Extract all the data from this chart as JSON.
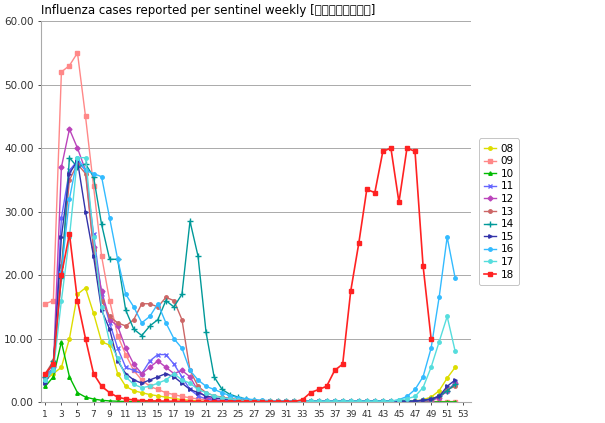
{
  "title": "Influenza cases reported per sentinel weekly [定点当たり報告数]",
  "weeks": [
    1,
    2,
    3,
    4,
    5,
    6,
    7,
    8,
    9,
    10,
    11,
    12,
    13,
    14,
    15,
    16,
    17,
    18,
    19,
    20,
    21,
    22,
    23,
    24,
    25,
    26,
    27,
    28,
    29,
    30,
    31,
    32,
    33,
    34,
    35,
    36,
    37,
    38,
    39,
    40,
    41,
    42,
    43,
    44,
    45,
    46,
    47,
    48,
    49,
    50,
    51,
    52,
    53
  ],
  "series": {
    "08": {
      "color": "#DDDD00",
      "marker": "o",
      "markersize": 2.5,
      "linewidth": 1.0,
      "values": [
        3.5,
        4.5,
        5.5,
        10.0,
        17.0,
        18.0,
        14.0,
        9.5,
        9.0,
        4.5,
        2.5,
        1.8,
        1.5,
        1.2,
        1.0,
        0.8,
        0.6,
        0.4,
        0.3,
        0.2,
        0.1,
        0.1,
        0.1,
        0.1,
        0.1,
        0.1,
        0.1,
        0.1,
        0.1,
        0.1,
        0.1,
        0.1,
        0.1,
        0.1,
        0.1,
        0.1,
        0.1,
        0.1,
        0.1,
        0.1,
        0.1,
        0.1,
        0.1,
        0.1,
        0.1,
        0.1,
        0.15,
        0.4,
        0.8,
        1.8,
        3.8,
        5.5,
        null
      ]
    },
    "09": {
      "color": "#FF8888",
      "marker": "s",
      "markersize": 2.5,
      "linewidth": 1.0,
      "values": [
        15.5,
        16.0,
        52.0,
        53.0,
        55.0,
        45.0,
        34.0,
        23.0,
        16.0,
        10.5,
        7.5,
        5.0,
        3.5,
        2.5,
        2.0,
        1.5,
        1.2,
        0.9,
        0.7,
        0.5,
        0.4,
        0.3,
        0.2,
        0.2,
        0.1,
        0.1,
        0.1,
        0.1,
        0.1,
        0.1,
        0.1,
        0.1,
        0.1,
        0.1,
        0.1,
        0.1,
        0.1,
        0.1,
        0.1,
        0.1,
        0.1,
        0.1,
        0.1,
        0.1,
        0.1,
        0.1,
        0.1,
        0.1,
        0.1,
        0.1,
        0.1,
        0.1,
        null
      ]
    },
    "10": {
      "color": "#00BB00",
      "marker": "^",
      "markersize": 2.5,
      "linewidth": 1.0,
      "values": [
        2.5,
        4.0,
        9.5,
        4.0,
        1.5,
        0.8,
        0.5,
        0.3,
        0.2,
        0.15,
        0.1,
        0.1,
        0.1,
        0.05,
        0.05,
        0.05,
        0.05,
        0.05,
        0.05,
        0.05,
        0.05,
        0.05,
        0.05,
        0.05,
        0.05,
        0.05,
        0.05,
        0.05,
        0.05,
        0.05,
        0.05,
        0.05,
        0.05,
        0.05,
        0.05,
        0.05,
        0.05,
        0.05,
        0.05,
        0.05,
        0.05,
        0.05,
        0.05,
        0.05,
        0.05,
        0.05,
        0.05,
        0.05,
        0.05,
        0.05,
        0.05,
        0.05,
        null
      ]
    },
    "11": {
      "color": "#6666FF",
      "marker": "x",
      "markersize": 3.5,
      "linewidth": 1.0,
      "values": [
        3.5,
        5.0,
        29.0,
        36.5,
        38.0,
        36.5,
        26.5,
        17.0,
        12.5,
        8.5,
        5.5,
        5.0,
        4.5,
        6.5,
        7.5,
        7.5,
        6.0,
        4.0,
        2.0,
        1.0,
        0.5,
        0.3,
        0.2,
        0.15,
        0.1,
        0.1,
        0.1,
        0.1,
        0.1,
        0.1,
        0.1,
        0.1,
        0.1,
        0.1,
        0.1,
        0.1,
        0.1,
        0.1,
        0.1,
        0.1,
        0.1,
        0.1,
        0.1,
        0.1,
        0.1,
        0.1,
        0.1,
        0.2,
        0.4,
        0.8,
        1.8,
        3.0,
        null
      ]
    },
    "12": {
      "color": "#BB44BB",
      "marker": "D",
      "markersize": 2.5,
      "linewidth": 1.0,
      "values": [
        4.0,
        5.5,
        37.0,
        43.0,
        40.0,
        36.5,
        24.5,
        17.5,
        13.0,
        12.0,
        8.5,
        6.0,
        4.5,
        5.5,
        6.5,
        5.5,
        4.5,
        5.0,
        4.0,
        1.8,
        0.8,
        0.4,
        0.25,
        0.2,
        0.15,
        0.1,
        0.1,
        0.1,
        0.1,
        0.1,
        0.1,
        0.1,
        0.1,
        0.1,
        0.1,
        0.1,
        0.1,
        0.1,
        0.1,
        0.1,
        0.1,
        0.1,
        0.1,
        0.1,
        0.1,
        0.1,
        0.1,
        0.15,
        0.25,
        0.7,
        1.8,
        3.0,
        null
      ]
    },
    "13": {
      "color": "#CC6666",
      "marker": "o",
      "markersize": 2.5,
      "linewidth": 1.0,
      "values": [
        4.5,
        6.5,
        21.5,
        35.0,
        37.5,
        36.0,
        24.0,
        16.0,
        13.5,
        12.5,
        12.0,
        13.0,
        15.5,
        15.5,
        15.0,
        16.5,
        16.0,
        13.0,
        5.0,
        2.5,
        1.5,
        1.0,
        0.8,
        0.6,
        0.4,
        0.3,
        0.2,
        0.2,
        0.2,
        0.15,
        0.15,
        0.15,
        0.15,
        0.15,
        0.15,
        0.15,
        0.15,
        0.15,
        0.15,
        0.15,
        0.2,
        0.2,
        0.2,
        0.2,
        0.2,
        0.2,
        0.2,
        0.3,
        0.5,
        1.0,
        2.0,
        2.5,
        null
      ]
    },
    "14": {
      "color": "#009999",
      "marker": "+",
      "markersize": 4.0,
      "linewidth": 1.0,
      "values": [
        4.0,
        6.5,
        19.5,
        38.5,
        37.0,
        37.5,
        35.5,
        28.0,
        22.5,
        22.5,
        14.5,
        11.5,
        10.5,
        12.0,
        13.0,
        16.0,
        15.0,
        17.0,
        28.5,
        23.0,
        11.0,
        4.0,
        2.0,
        1.2,
        0.8,
        0.5,
        0.3,
        0.25,
        0.2,
        0.15,
        0.15,
        0.15,
        0.15,
        0.15,
        0.15,
        0.15,
        0.15,
        0.15,
        0.15,
        0.15,
        0.2,
        0.2,
        0.2,
        0.2,
        0.2,
        0.2,
        0.2,
        0.3,
        0.5,
        0.9,
        1.8,
        2.8,
        null
      ]
    },
    "15": {
      "color": "#3333AA",
      "marker": ">",
      "markersize": 2.5,
      "linewidth": 1.0,
      "values": [
        3.0,
        5.5,
        26.0,
        36.0,
        38.0,
        30.0,
        23.0,
        14.5,
        11.5,
        6.5,
        4.5,
        3.5,
        3.0,
        3.5,
        4.0,
        4.5,
        4.0,
        3.0,
        2.0,
        1.5,
        1.0,
        0.7,
        0.5,
        0.4,
        0.3,
        0.25,
        0.2,
        0.2,
        0.2,
        0.15,
        0.15,
        0.15,
        0.15,
        0.15,
        0.15,
        0.15,
        0.15,
        0.15,
        0.15,
        0.15,
        0.15,
        0.15,
        0.15,
        0.15,
        0.15,
        0.15,
        0.15,
        0.3,
        0.5,
        0.9,
        2.5,
        3.5,
        null
      ]
    },
    "16": {
      "color": "#33BBFF",
      "marker": "o",
      "markersize": 2.5,
      "linewidth": 1.0,
      "values": [
        3.5,
        5.5,
        20.5,
        32.0,
        38.5,
        36.5,
        36.0,
        35.5,
        29.0,
        22.5,
        17.0,
        15.0,
        12.5,
        13.5,
        15.5,
        12.5,
        10.0,
        8.5,
        5.0,
        3.5,
        2.5,
        2.0,
        1.5,
        1.0,
        0.7,
        0.5,
        0.4,
        0.3,
        0.25,
        0.2,
        0.15,
        0.15,
        0.15,
        0.15,
        0.15,
        0.15,
        0.15,
        0.15,
        0.15,
        0.15,
        0.15,
        0.15,
        0.15,
        0.15,
        0.4,
        0.9,
        2.0,
        4.0,
        8.5,
        16.5,
        26.0,
        19.5,
        null
      ]
    },
    "17": {
      "color": "#55DDDD",
      "marker": "o",
      "markersize": 2.5,
      "linewidth": 1.0,
      "values": [
        3.5,
        5.0,
        16.0,
        26.0,
        38.5,
        38.5,
        26.0,
        15.0,
        9.5,
        7.0,
        4.0,
        2.8,
        2.3,
        2.5,
        3.0,
        3.5,
        4.5,
        3.5,
        3.0,
        2.0,
        1.5,
        1.0,
        0.7,
        0.5,
        0.35,
        0.25,
        0.2,
        0.15,
        0.15,
        0.15,
        0.15,
        0.15,
        0.15,
        0.15,
        0.15,
        0.15,
        0.15,
        0.15,
        0.15,
        0.15,
        0.15,
        0.15,
        0.15,
        0.15,
        0.35,
        0.55,
        0.9,
        2.3,
        5.5,
        9.5,
        13.5,
        8.0,
        null
      ]
    },
    "18": {
      "color": "#FF2222",
      "marker": "s",
      "markersize": 3.5,
      "linewidth": 1.2,
      "values": [
        4.5,
        6.0,
        20.0,
        26.5,
        16.0,
        10.0,
        4.5,
        2.5,
        1.5,
        0.8,
        0.5,
        0.35,
        0.25,
        0.2,
        0.2,
        0.15,
        0.15,
        0.15,
        0.1,
        0.1,
        0.1,
        0.1,
        0.1,
        0.1,
        0.1,
        0.1,
        0.1,
        0.1,
        0.1,
        0.1,
        0.1,
        0.1,
        0.4,
        1.5,
        2.0,
        2.5,
        5.0,
        6.0,
        17.5,
        25.0,
        33.5,
        33.0,
        39.5,
        40.0,
        31.5,
        40.0,
        39.5,
        21.5,
        10.0,
        null,
        null,
        null,
        null
      ]
    }
  },
  "ylim": [
    0,
    60
  ],
  "yticks": [
    0,
    10,
    20,
    30,
    40,
    50,
    60
  ],
  "ytick_labels": [
    "0.00",
    "10.00",
    "20.00",
    "30.00",
    "40.00",
    "50.00",
    "60.00"
  ],
  "xtick_positions": [
    1,
    3,
    5,
    7,
    9,
    11,
    13,
    15,
    17,
    19,
    21,
    23,
    25,
    27,
    29,
    31,
    33,
    35,
    37,
    39,
    41,
    43,
    45,
    47,
    49,
    51,
    53
  ],
  "background_color": "#FFFFFF",
  "plot_bg_color": "#FFFFFF",
  "grid_color": "#AAAAAA"
}
